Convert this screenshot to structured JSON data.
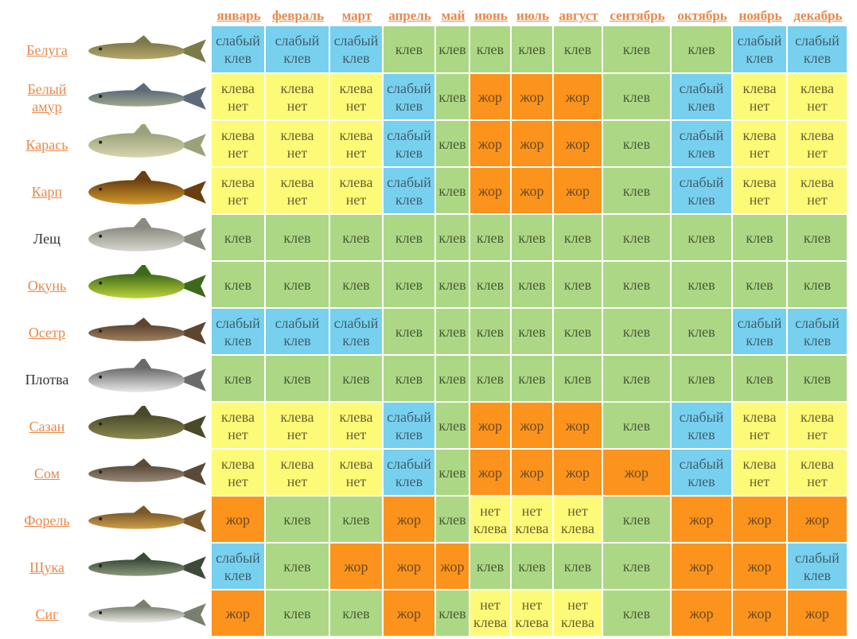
{
  "months": [
    "январь",
    "февраль",
    "март",
    "апрель",
    "май",
    "июнь",
    "июль",
    "август",
    "сентябрь",
    "октябрь",
    "ноябрь",
    "декабрь"
  ],
  "legend_colors": {
    "клев": "#acd885",
    "слабый клев": "#78d0ef",
    "клева нет": "#fdfa78",
    "нет клева": "#fdfa78",
    "жор": "#fb931d"
  },
  "fish": [
    {
      "name": "Белуга",
      "link": true,
      "icon": "beluga-fish-icon",
      "cells": [
        "слабый клев",
        "слабый клев",
        "слабый клев",
        "клев",
        "клев",
        "клев",
        "клев",
        "клев",
        "клев",
        "клев",
        "слабый клев",
        "слабый клев"
      ]
    },
    {
      "name": "Белый амур",
      "link": true,
      "icon": "grass-carp-fish-icon",
      "cells": [
        "клева нет",
        "клева нет",
        "клева нет",
        "слабый клев",
        "клев",
        "жор",
        "жор",
        "жор",
        "клев",
        "слабый клев",
        "клева нет",
        "клева нет"
      ]
    },
    {
      "name": "Карась",
      "link": true,
      "icon": "crucian-fish-icon",
      "cells": [
        "клева нет",
        "клева нет",
        "клева нет",
        "слабый клев",
        "клев",
        "жор",
        "жор",
        "жор",
        "клев",
        "слабый клев",
        "клева нет",
        "клева нет"
      ]
    },
    {
      "name": "Карп",
      "link": true,
      "icon": "carp-fish-icon",
      "cells": [
        "клева нет",
        "клева нет",
        "клева нет",
        "слабый клев",
        "клев",
        "жор",
        "жор",
        "жор",
        "клев",
        "слабый клев",
        "клева нет",
        "клева нет"
      ]
    },
    {
      "name": "Лещ",
      "link": false,
      "icon": "bream-fish-icon",
      "cells": [
        "клев",
        "клев",
        "клев",
        "клев",
        "клев",
        "клев",
        "клев",
        "клев",
        "клев",
        "клев",
        "клев",
        "клев"
      ]
    },
    {
      "name": "Окунь",
      "link": true,
      "icon": "perch-fish-icon",
      "cells": [
        "клев",
        "клев",
        "клев",
        "клев",
        "клев",
        "клев",
        "клев",
        "клев",
        "клев",
        "клев",
        "клев",
        "клев"
      ]
    },
    {
      "name": "Осетр",
      "link": true,
      "icon": "sturgeon-fish-icon",
      "cells": [
        "слабый клев",
        "слабый клев",
        "слабый клев",
        "клев",
        "клев",
        "клев",
        "клев",
        "клев",
        "клев",
        "клев",
        "слабый клев",
        "слабый клев"
      ]
    },
    {
      "name": "Плотва",
      "link": false,
      "icon": "roach-fish-icon",
      "cells": [
        "клев",
        "клев",
        "клев",
        "клев",
        "клев",
        "клев",
        "клев",
        "клев",
        "клев",
        "клев",
        "клев",
        "клев"
      ]
    },
    {
      "name": "Сазан",
      "link": true,
      "icon": "wild-carp-fish-icon",
      "cells": [
        "клева нет",
        "клева нет",
        "клева нет",
        "слабый клев",
        "клев",
        "жор",
        "жор",
        "жор",
        "клев",
        "слабый клев",
        "клева нет",
        "клева нет"
      ]
    },
    {
      "name": "Сом",
      "link": true,
      "icon": "catfish-fish-icon",
      "cells": [
        "клева нет",
        "клева нет",
        "клева нет",
        "слабый клев",
        "клев",
        "жор",
        "жор",
        "жор",
        "жор",
        "слабый клев",
        "клева нет",
        "клева нет"
      ]
    },
    {
      "name": "Форель",
      "link": true,
      "icon": "trout-fish-icon",
      "cells": [
        "жор",
        "клев",
        "клев",
        "жор",
        "клев",
        "нет клева",
        "нет клева",
        "нет клева",
        "клев",
        "жор",
        "жор",
        "жор"
      ]
    },
    {
      "name": "Щука",
      "link": true,
      "icon": "pike-fish-icon",
      "cells": [
        "слабый клев",
        "клев",
        "жор",
        "жор",
        "жор",
        "клев",
        "клев",
        "клев",
        "клев",
        "жор",
        "жор",
        "слабый клев"
      ]
    },
    {
      "name": "Сиг",
      "link": true,
      "icon": "whitefish-fish-icon",
      "cells": [
        "жор",
        "клев",
        "клев",
        "жор",
        "клев",
        "нет клева",
        "нет клева",
        "нет клева",
        "клев",
        "жор",
        "жор",
        "жор"
      ]
    }
  ]
}
